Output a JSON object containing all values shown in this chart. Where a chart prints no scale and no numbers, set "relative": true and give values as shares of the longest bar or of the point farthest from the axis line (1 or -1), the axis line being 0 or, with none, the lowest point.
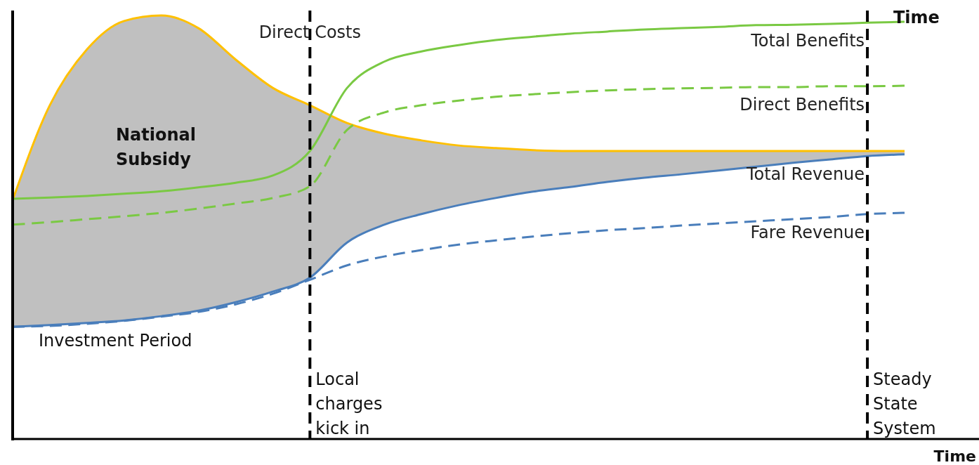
{
  "chart_data": {
    "type": "line",
    "relative": true,
    "xlabel": "Time",
    "categories": [
      null,
      null,
      null,
      null,
      null,
      null,
      null,
      null,
      null,
      null,
      null,
      null,
      null,
      null,
      null,
      null,
      null,
      null,
      null,
      null,
      null,
      null,
      null,
      null,
      null
    ],
    "annotations": [
      "National Subsidy",
      "Investment Period",
      "Local charges kick in",
      "Steady State System",
      "Time"
    ],
    "series": [
      {
        "name": "Direct Costs",
        "color": "#ffc000",
        "line_style": "solid",
        "values": [
          0.564,
          0.788,
          0.92,
          0.987,
          1,
          0.97,
          0.896,
          0.829,
          0.788,
          0.746,
          0.721,
          0.705,
          0.693,
          0.687,
          0.682,
          0.68,
          0.68,
          0.68,
          0.68,
          0.68,
          0.68,
          0.68,
          0.68,
          0.68,
          0.68
        ],
        "upper": [
          0.564,
          0.788,
          0.92,
          0.987,
          1,
          0.97,
          0.896,
          0.829,
          0.788,
          0.746,
          0.721,
          0.705,
          0.693,
          0.687,
          0.682,
          0.68,
          0.68,
          0.68,
          0.68,
          0.68,
          0.68,
          0.68,
          0.68,
          0.68,
          0.68
        ],
        "lower": [
          0.265,
          0.269,
          0.274,
          0.28,
          0.29,
          0.303,
          0.323,
          0.348,
          0.381,
          0.464,
          0.506,
          0.531,
          0.552,
          0.569,
          0.584,
          0.595,
          0.607,
          0.617,
          0.625,
          0.634,
          0.643,
          0.652,
          0.66,
          0.668,
          0.672
        ]
      },
      {
        "name": "Total Benefits",
        "color": "#7ac943",
        "line_style": "solid",
        "values": [
          0.567,
          0.57,
          0.574,
          0.579,
          0.585,
          0.594,
          0.605,
          0.622,
          0.68,
          0.829,
          0.891,
          0.915,
          0.93,
          0.942,
          0.95,
          0.957,
          0.962,
          0.967,
          0.97,
          0.973,
          0.977,
          0.978,
          0.98,
          0.983,
          0.985
        ]
      },
      {
        "name": "Direct Benefits",
        "color": "#7ac943",
        "line_style": "dashed",
        "values": [
          0.506,
          0.512,
          0.519,
          0.526,
          0.534,
          0.544,
          0.556,
          0.569,
          0.597,
          0.73,
          0.771,
          0.788,
          0.799,
          0.808,
          0.814,
          0.819,
          0.823,
          0.826,
          0.828,
          0.829,
          0.831,
          0.831,
          0.833,
          0.833,
          0.834
        ]
      },
      {
        "name": "Total Revenue",
        "color": "#4a7ebb",
        "line_style": "solid",
        "values": [
          0.265,
          0.269,
          0.274,
          0.28,
          0.29,
          0.303,
          0.323,
          0.348,
          0.381,
          0.464,
          0.506,
          0.531,
          0.552,
          0.569,
          0.584,
          0.595,
          0.607,
          0.617,
          0.625,
          0.634,
          0.643,
          0.652,
          0.66,
          0.668,
          0.672
        ]
      },
      {
        "name": "Fare Revenue",
        "color": "#4a7ebb",
        "line_style": "dashed",
        "values": [
          0.265,
          0.267,
          0.272,
          0.279,
          0.289,
          0.3,
          0.318,
          0.343,
          0.376,
          0.41,
          0.431,
          0.446,
          0.459,
          0.469,
          0.478,
          0.486,
          0.493,
          0.498,
          0.504,
          0.509,
          0.514,
          0.519,
          0.524,
          0.531,
          0.534
        ]
      }
    ]
  }
}
